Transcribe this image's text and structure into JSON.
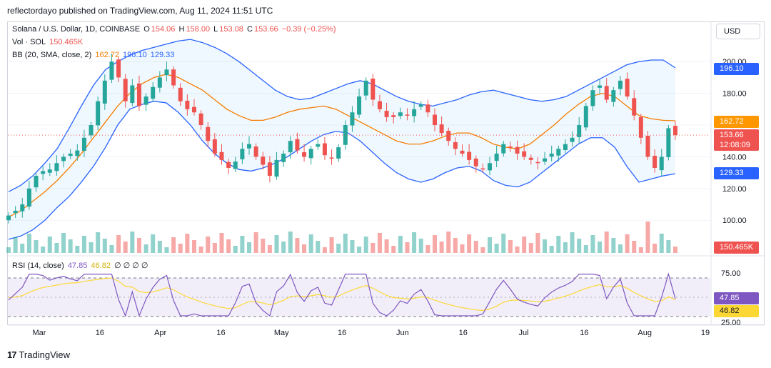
{
  "header": {
    "published": "reflectordayo published on TradingView.com, Aug 11, 2024 11:51 UTC"
  },
  "legend": {
    "symbol": "Solana / U.S. Dollar, 1D, COINBASE",
    "o_label": "O",
    "o_val": "154.06",
    "h_label": "H",
    "h_val": "158.00",
    "l_label": "L",
    "l_val": "153.08",
    "c_label": "C",
    "c_val": "153.66",
    "change": "−0.39 (−0.25%)",
    "vol_label": "Vol · SOL",
    "vol_val": "150.465K",
    "bb_label": "BB (20, SMA, close, 2)",
    "bb_mid": "162.72",
    "bb_up": "196.10",
    "bb_lo": "129.33",
    "rsi_label": "RSI (14, close)",
    "rsi_val": "47.85",
    "rsi_ma": "46.82",
    "rsi_zeros": "∅ ∅ ∅ ∅"
  },
  "currency": "USD",
  "price_axis": [
    "200.00",
    "180.00",
    "160.00",
    "140.00",
    "120.00",
    "100.00"
  ],
  "rsi_axis": [
    "75.00",
    "25.00"
  ],
  "time_axis": [
    "Mar",
    "16",
    "Apr",
    "16",
    "May",
    "16",
    "Jun",
    "16",
    "Jul",
    "16",
    "Aug",
    "19"
  ],
  "price_tags": {
    "upper": "196.10",
    "mid": "162.72",
    "last": "153.66",
    "countdown": "12:08:09",
    "lower": "129.33",
    "volume": "150.465K",
    "rsi": "47.85",
    "rsi_ma": "46.82"
  },
  "footer": {
    "brand": "TradingView",
    "logo": "17"
  },
  "colors": {
    "up": "#26a69a",
    "down": "#ef5350",
    "bb_mid": "#f57c00",
    "bb_band": "#2962ff",
    "rsi": "#7e57c2",
    "rsi_ma": "#fdd835",
    "last": "#ef5350"
  },
  "chart_data": {
    "type": "candlestick",
    "symbol": "Solana / U.S. Dollar, 1D, COINBASE",
    "y_range": [
      92,
      210
    ],
    "x_ticks": [
      "Mar",
      "16",
      "Apr",
      "16",
      "May",
      "16",
      "Jun",
      "16",
      "Jul",
      "16",
      "Aug",
      "19"
    ],
    "close_path": [
      103,
      106,
      110,
      120,
      128,
      131,
      132,
      136,
      140,
      142,
      144,
      152,
      160,
      175,
      188,
      200,
      190,
      175,
      185,
      172,
      178,
      184,
      190,
      195,
      185,
      175,
      170,
      168,
      160,
      150,
      142,
      138,
      133,
      137,
      145,
      148,
      140,
      135,
      128,
      138,
      142,
      150,
      144,
      140,
      145,
      148,
      141,
      139,
      146,
      160,
      168,
      178,
      188,
      176,
      170,
      165,
      165,
      168,
      166,
      170,
      173,
      168,
      160,
      155,
      150,
      145,
      142,
      138,
      134,
      132,
      136,
      142,
      148,
      146,
      142,
      140,
      138,
      136,
      139,
      142,
      145,
      148,
      152,
      160,
      172,
      182,
      185,
      176,
      182,
      188,
      178,
      166,
      152,
      140,
      133,
      140,
      158,
      153.66
    ],
    "bollinger": {
      "upper": [
        118,
        122,
        128,
        136,
        145,
        158,
        172,
        185,
        195,
        200,
        204,
        207,
        209,
        211,
        213,
        214,
        212,
        209,
        205,
        200,
        194,
        188,
        182,
        178,
        176,
        177,
        180,
        183,
        186,
        188,
        186,
        182,
        178,
        175,
        173,
        172,
        174,
        176,
        179,
        181,
        182,
        180,
        178,
        176,
        175,
        176,
        178,
        182,
        186,
        190,
        194,
        198,
        200,
        201,
        201,
        196.1
      ],
      "middle": [
        102,
        106,
        112,
        118,
        125,
        133,
        142,
        152,
        162,
        172,
        180,
        186,
        190,
        192,
        190,
        186,
        182,
        176,
        170,
        166,
        163,
        163,
        165,
        168,
        170,
        171,
        172,
        170,
        166,
        162,
        158,
        154,
        150,
        148,
        148,
        150,
        153,
        155,
        155,
        152,
        148,
        146,
        145,
        148,
        154,
        160,
        167,
        173,
        178,
        180,
        178,
        172,
        166,
        164,
        163,
        162.72
      ],
      "lower": [
        88,
        90,
        94,
        100,
        108,
        115,
        124,
        134,
        146,
        160,
        170,
        173,
        175,
        174,
        168,
        160,
        150,
        142,
        136,
        132,
        131,
        133,
        136,
        140,
        145,
        150,
        154,
        156,
        155,
        150,
        143,
        136,
        130,
        126,
        124,
        126,
        130,
        133,
        134,
        131,
        125,
        122,
        121,
        124,
        130,
        136,
        142,
        148,
        152,
        152,
        146,
        134,
        124,
        126,
        128,
        129.33
      ]
    },
    "volume_last": "150.465K",
    "rsi": {
      "value": 47.85,
      "ma": 46.82,
      "levels": [
        75,
        25
      ]
    }
  }
}
